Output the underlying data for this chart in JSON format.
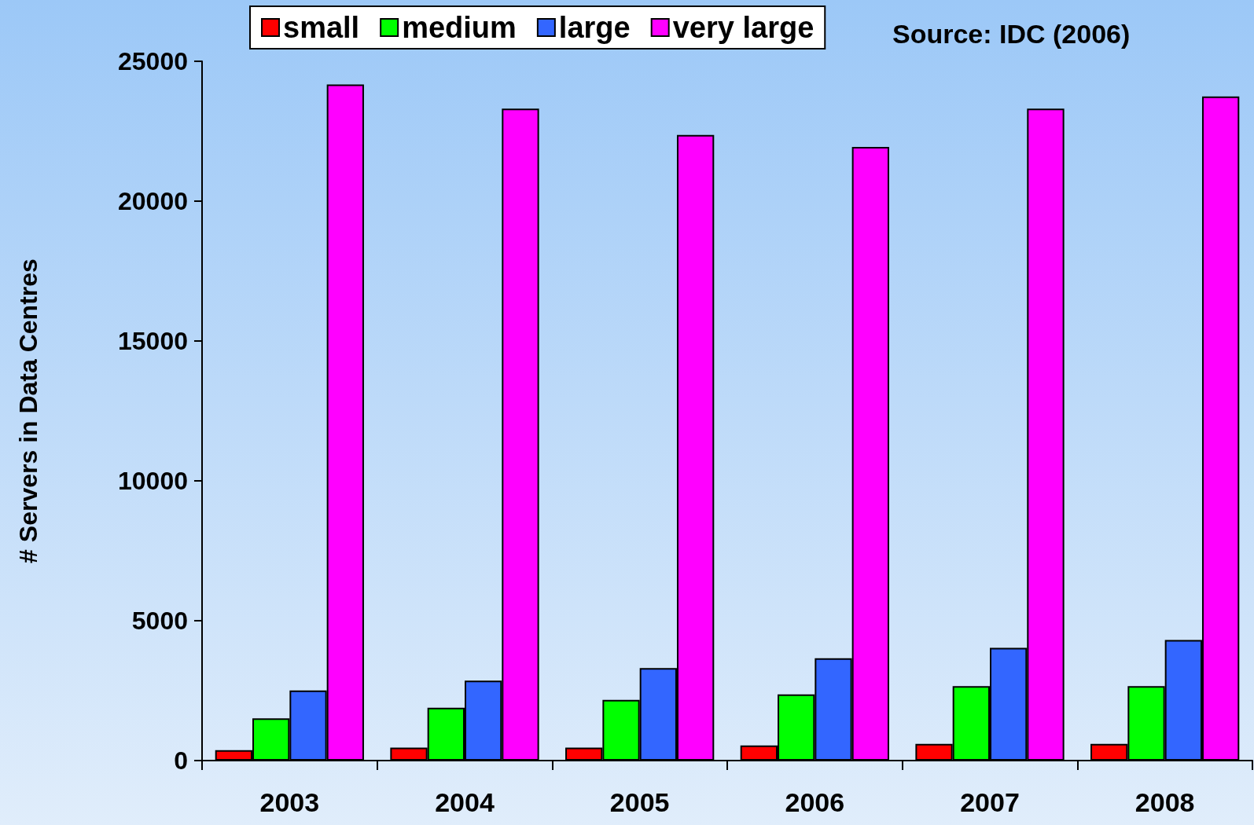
{
  "chart_data": {
    "type": "bar",
    "ylabel": "# Servers in Data Centres",
    "annotations": [
      "Source: IDC (2006)"
    ],
    "categories": [
      "2003",
      "2004",
      "2005",
      "2006",
      "2007",
      "2008"
    ],
    "series": [
      {
        "name": "small",
        "color": "#ff0000",
        "values": [
          370,
          460,
          460,
          540,
          600,
          600
        ]
      },
      {
        "name": "medium",
        "color": "#00ff00",
        "values": [
          1510,
          1890,
          2170,
          2370,
          2660,
          2660
        ]
      },
      {
        "name": "large",
        "color": "#3366ff",
        "values": [
          2510,
          2860,
          3310,
          3660,
          4030,
          4310
        ]
      },
      {
        "name": "very large",
        "color": "#ff00ff",
        "values": [
          24170,
          23310,
          22370,
          21940,
          23310,
          23740
        ]
      }
    ],
    "ylim": [
      0,
      25000
    ],
    "yticks": [
      0,
      5000,
      10000,
      15000,
      20000,
      25000
    ],
    "grid": false,
    "legend": "top"
  }
}
